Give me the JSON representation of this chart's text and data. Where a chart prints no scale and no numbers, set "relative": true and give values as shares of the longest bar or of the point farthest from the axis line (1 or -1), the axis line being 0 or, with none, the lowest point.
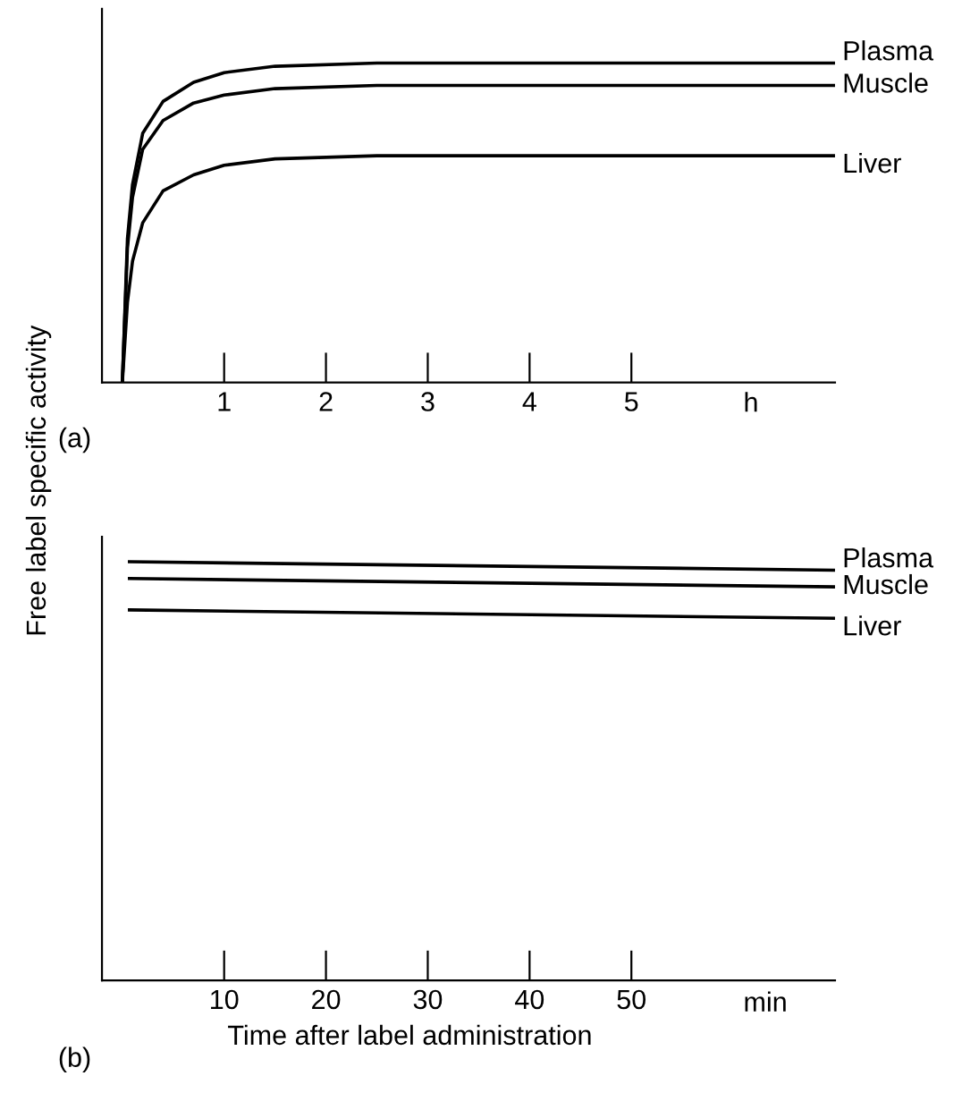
{
  "chart_data": [
    {
      "type": "line",
      "relative": true,
      "ylabel": "Free label specific activity",
      "xlabel": "h",
      "annotations": [
        "(a)"
      ],
      "xlim": [
        -0.2,
        7.0
      ],
      "xticks": [
        1,
        2,
        3,
        4,
        5
      ],
      "tick_labels": "x",
      "grid": false,
      "legend": false,
      "marker": "none",
      "line_style": "solid",
      "series": [
        {
          "name": "Plasma",
          "color": "#000000",
          "x": [
            0,
            0.05,
            0.1,
            0.2,
            0.4,
            0.7,
            1.0,
            1.5,
            2.5,
            7.0
          ],
          "values": [
            0,
            0.45,
            0.62,
            0.78,
            0.88,
            0.94,
            0.97,
            0.99,
            1.0,
            1.0
          ]
        },
        {
          "name": "Muscle",
          "color": "#000000",
          "x": [
            0,
            0.05,
            0.1,
            0.2,
            0.4,
            0.7,
            1.0,
            1.5,
            2.5,
            7.0
          ],
          "values": [
            0,
            0.42,
            0.58,
            0.73,
            0.82,
            0.875,
            0.9,
            0.92,
            0.93,
            0.93
          ]
        },
        {
          "name": "Liver",
          "color": "#000000",
          "x": [
            0,
            0.05,
            0.1,
            0.2,
            0.4,
            0.7,
            1.0,
            1.5,
            2.5,
            7.0
          ],
          "values": [
            0,
            0.25,
            0.38,
            0.5,
            0.6,
            0.65,
            0.68,
            0.7,
            0.71,
            0.71
          ]
        }
      ]
    },
    {
      "type": "line",
      "relative": true,
      "xlabel": "min",
      "annotations": [
        "Time after label administration",
        "(b)"
      ],
      "xlim": [
        -2,
        70
      ],
      "xticks": [
        10,
        20,
        30,
        40,
        50
      ],
      "tick_labels": "x",
      "grid": false,
      "legend": false,
      "marker": "none",
      "line_style": "solid",
      "series": [
        {
          "name": "Plasma",
          "color": "#000000",
          "x": [
            0.7,
            70
          ],
          "values": [
            1.0,
            0.98
          ]
        },
        {
          "name": "Muscle",
          "color": "#000000",
          "x": [
            0.7,
            70
          ],
          "values": [
            0.96,
            0.94
          ]
        },
        {
          "name": "Liver",
          "color": "#000000",
          "x": [
            0.7,
            70
          ],
          "values": [
            0.885,
            0.865
          ]
        }
      ]
    }
  ]
}
